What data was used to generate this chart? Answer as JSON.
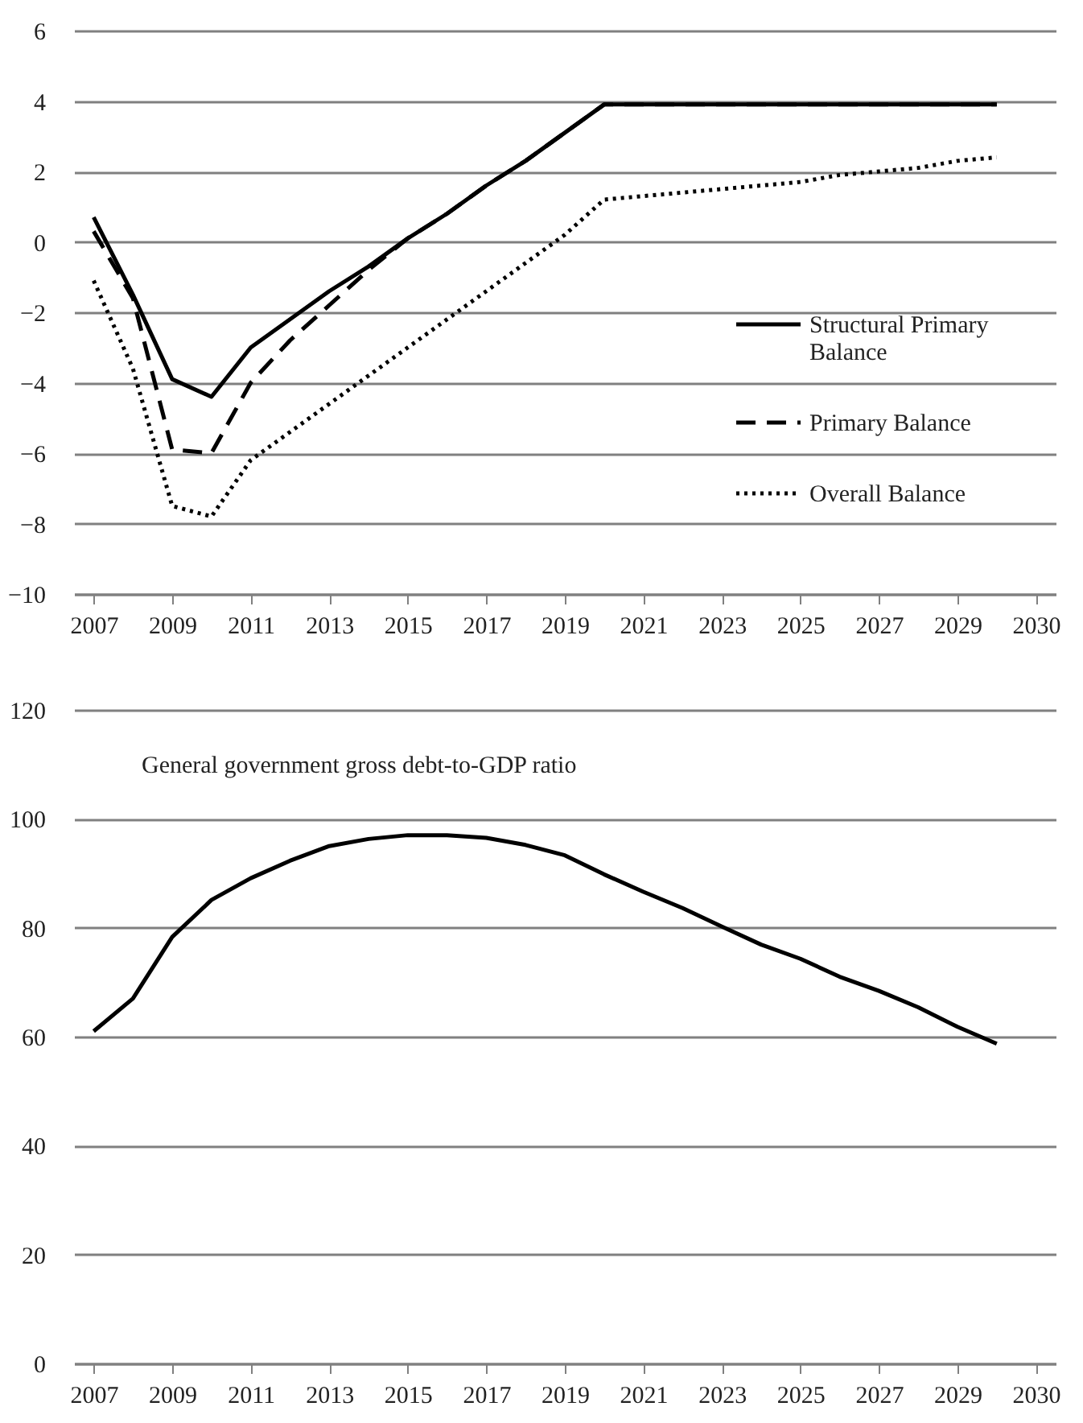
{
  "chart_data": [
    {
      "type": "line",
      "categories": [
        "2007",
        null,
        "2009",
        null,
        "2011",
        null,
        "2013",
        null,
        "2015",
        null,
        "2017",
        null,
        "2019",
        null,
        "2021",
        null,
        "2023",
        null,
        "2025",
        null,
        "2027",
        null,
        "2029",
        null,
        "2030"
      ],
      "series": [
        {
          "name": "Structural Primary Balance",
          "color": "#000000",
          "line_style": "solid",
          "values": [
            0.7,
            -1.5,
            -3.9,
            -4.4,
            -3.0,
            -2.2,
            -1.4,
            -0.7,
            0.1,
            0.8,
            1.6,
            2.3,
            3.1,
            3.9,
            3.9,
            3.9,
            3.9,
            3.9,
            3.9,
            3.9,
            3.9,
            3.9,
            3.9,
            3.9,
            null
          ]
        },
        {
          "name": "Primary Balance",
          "color": "#000000",
          "line_style": "dashed",
          "values": [
            0.3,
            -1.6,
            -5.9,
            -6.0,
            -4.0,
            -2.8,
            -1.8,
            -0.8,
            0.1,
            0.8,
            1.6,
            2.3,
            3.1,
            3.9,
            3.9,
            3.9,
            3.9,
            3.9,
            3.9,
            3.9,
            3.9,
            3.9,
            3.9,
            3.9,
            null
          ]
        },
        {
          "name": "Overall Balance",
          "color": "#000000",
          "line_style": "dotted",
          "values": [
            -1.1,
            -3.6,
            -7.5,
            -7.8,
            -6.2,
            -5.4,
            -4.6,
            -3.8,
            -3.0,
            -2.2,
            -1.4,
            -0.6,
            0.2,
            1.2,
            1.3,
            1.4,
            1.5,
            1.6,
            1.7,
            1.9,
            2.0,
            2.1,
            2.3,
            2.4,
            null
          ]
        }
      ],
      "ylim": [
        -10,
        6
      ],
      "yticks": [
        -10,
        -8,
        -6,
        -4,
        -2,
        0,
        2,
        4,
        6
      ],
      "grid": "y",
      "legend": "right"
    },
    {
      "type": "line",
      "title": "General government gross debt-to-GDP ratio",
      "categories": [
        "2007",
        null,
        "2009",
        null,
        "2011",
        null,
        "2013",
        null,
        "2015",
        null,
        "2017",
        null,
        "2019",
        null,
        "2021",
        null,
        "2023",
        null,
        "2025",
        null,
        "2027",
        null,
        "2029",
        null,
        "2030"
      ],
      "series": [
        {
          "color": "#000000",
          "line_style": "solid",
          "values": [
            61.0,
            67.0,
            78.3,
            85.1,
            89.1,
            92.3,
            95.0,
            96.3,
            97.0,
            97.0,
            96.5,
            95.2,
            93.3,
            89.8,
            86.6,
            83.6,
            80.2,
            76.9,
            74.3,
            71.0,
            68.4,
            65.4,
            61.8,
            58.7,
            null
          ]
        }
      ],
      "ylim": [
        0,
        120
      ],
      "yticks": [
        0,
        20,
        40,
        60,
        80,
        100,
        120
      ],
      "grid": "y"
    }
  ]
}
